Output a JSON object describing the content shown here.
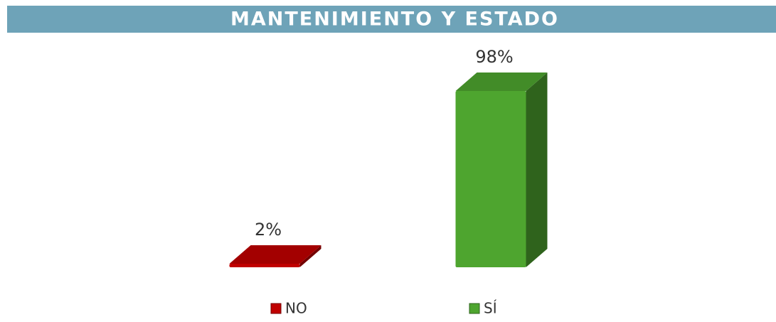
{
  "chart_data": {
    "type": "bar",
    "title": "MANTENIMIENTO Y ESTADO",
    "categories": [
      "NO",
      "SÍ"
    ],
    "values": [
      2,
      98
    ],
    "value_labels": [
      "2%",
      "98%"
    ],
    "colors": [
      "#c00000",
      "#4ea52f"
    ],
    "ylim": [
      0,
      100
    ]
  }
}
